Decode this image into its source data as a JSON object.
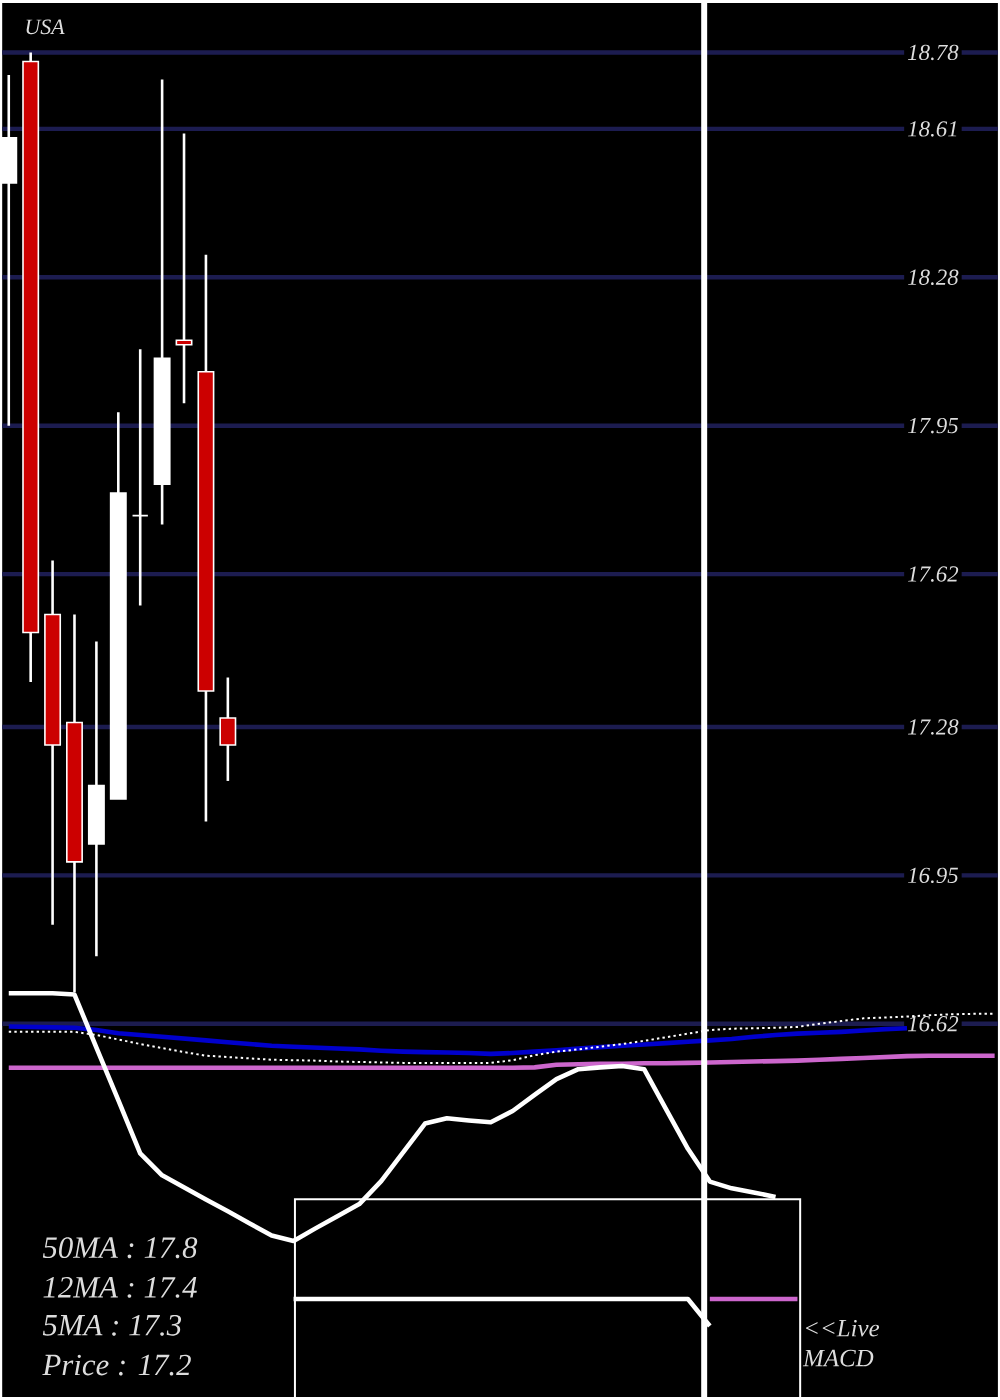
{
  "chart_data": {
    "type": "candlestick",
    "title": "USA",
    "categories": [
      null,
      null,
      null,
      null,
      null,
      null,
      null,
      null,
      null,
      null,
      null,
      null,
      null,
      null,
      null,
      null,
      null,
      null,
      null,
      null,
      null,
      null,
      null,
      null,
      null,
      null,
      null,
      null,
      null,
      null,
      null,
      null,
      null,
      null,
      null,
      null,
      null,
      null,
      null,
      null,
      null,
      null,
      null,
      null,
      null,
      null
    ],
    "ohlc": [
      [
        18.49,
        18.73,
        17.95,
        18.59
      ],
      [
        18.76,
        18.78,
        17.38,
        17.49
      ],
      [
        17.53,
        17.65,
        16.84,
        17.24
      ],
      [
        17.29,
        17.53,
        16.69,
        16.98
      ],
      [
        17.02,
        17.47,
        16.77,
        17.15
      ],
      [
        17.12,
        17.98,
        17.12,
        17.8
      ],
      [
        17.75,
        18.12,
        17.55,
        17.75
      ],
      [
        17.82,
        18.72,
        17.73,
        18.1
      ],
      [
        18.14,
        18.6,
        18.0,
        18.13
      ],
      [
        18.07,
        18.33,
        17.07,
        17.36
      ],
      [
        17.3,
        17.39,
        17.16,
        17.24
      ],
      null,
      null,
      null,
      null,
      null,
      null,
      null,
      null,
      null,
      null,
      null,
      null,
      null,
      null,
      null,
      null,
      null,
      null,
      null,
      null,
      null,
      null,
      null,
      null,
      null,
      null,
      null,
      null,
      null,
      null,
      null,
      null,
      null,
      null,
      null
    ],
    "colors": [
      "#ffffff",
      "#cc0000",
      "#cc0000",
      "#cc0000",
      "#ffffff",
      "#ffffff",
      "#ffffff",
      "#ffffff",
      "#cc0000",
      "#cc0000",
      "#cc0000",
      null,
      null,
      null,
      null,
      null,
      null,
      null,
      null,
      null,
      null,
      null,
      null,
      null,
      null,
      null,
      null,
      null,
      null,
      null,
      null,
      null,
      null,
      null,
      null,
      null,
      null,
      null,
      null,
      null,
      null,
      null,
      null,
      null,
      null,
      null
    ],
    "series": [
      {
        "type": "line",
        "color": "#0000cc",
        "values": [
          16.614,
          16.613,
          16.612,
          16.611,
          16.606,
          16.599,
          16.595,
          16.591,
          16.587,
          16.583,
          16.579,
          16.575,
          16.571,
          16.569,
          16.567,
          16.565,
          16.563,
          16.56,
          16.558,
          16.557,
          16.556,
          16.555,
          16.553,
          16.555,
          16.558,
          16.561,
          16.565,
          16.568,
          16.571,
          16.574,
          16.577,
          16.58,
          16.583,
          16.586,
          16.591,
          16.595,
          16.598,
          16.6,
          16.602,
          16.605,
          16.608,
          16.61,
          null,
          null,
          null,
          null
        ]
      },
      {
        "type": "line",
        "color": "#ffffff",
        "line_style": "dotted",
        "values": [
          16.602,
          16.602,
          16.602,
          16.602,
          16.595,
          16.585,
          16.575,
          16.566,
          16.557,
          16.549,
          16.546,
          16.543,
          16.54,
          16.539,
          16.538,
          16.536,
          16.535,
          16.534,
          16.533,
          16.533,
          16.533,
          16.533,
          16.533,
          16.539,
          16.55,
          16.558,
          16.563,
          16.569,
          16.575,
          16.582,
          16.59,
          16.598,
          16.606,
          16.609,
          16.61,
          16.611,
          16.613,
          16.62,
          16.626,
          16.632,
          16.634,
          16.636,
          16.639,
          16.641,
          16.642,
          16.642
        ]
      },
      {
        "type": "line",
        "color": "#cc66cc",
        "values": [
          16.522,
          16.522,
          16.522,
          16.522,
          16.522,
          16.522,
          16.522,
          16.522,
          16.522,
          16.522,
          16.522,
          16.522,
          16.522,
          16.522,
          16.522,
          16.522,
          16.522,
          16.522,
          16.522,
          16.522,
          16.522,
          16.522,
          16.522,
          16.522,
          16.523,
          16.529,
          16.53,
          16.531,
          16.531,
          16.532,
          16.532,
          16.533,
          16.534,
          16.535,
          16.536,
          16.537,
          16.538,
          16.54,
          16.542,
          16.544,
          16.546,
          16.548,
          16.549,
          16.549,
          16.549,
          16.549
        ]
      },
      {
        "type": "line",
        "color": "#ffffff",
        "values": [
          16.688,
          16.688,
          16.688,
          16.685,
          16.567,
          16.45,
          16.332,
          16.283,
          16.256,
          16.229,
          16.203,
          16.176,
          16.149,
          16.137,
          16.165,
          16.192,
          16.219,
          16.27,
          16.334,
          16.398,
          16.41,
          16.405,
          16.401,
          16.426,
          16.462,
          16.497,
          16.519,
          16.523,
          16.526,
          16.519,
          16.43,
          16.342,
          16.269,
          16.254,
          16.245,
          16.235,
          null,
          null,
          null,
          null,
          null,
          null,
          null,
          null,
          null,
          null
        ]
      },
      {
        "type": "line",
        "color": "#ffffff",
        "values": [
          null,
          null,
          null,
          null,
          null,
          null,
          null,
          null,
          null,
          null,
          null,
          null,
          null,
          16.008,
          16.008,
          16.008,
          16.008,
          16.008,
          16.008,
          16.008,
          16.008,
          16.008,
          16.008,
          16.008,
          16.008,
          16.008,
          16.008,
          16.008,
          16.008,
          16.008,
          16.008,
          16.008,
          15.948,
          null,
          null,
          null,
          null,
          null,
          null,
          null,
          null,
          null,
          null,
          null,
          null,
          null
        ]
      },
      {
        "type": "line",
        "color": "#cc66cc",
        "values": [
          null,
          null,
          null,
          null,
          null,
          null,
          null,
          null,
          null,
          null,
          null,
          null,
          null,
          null,
          null,
          null,
          null,
          null,
          null,
          null,
          null,
          null,
          null,
          null,
          null,
          null,
          null,
          null,
          null,
          null,
          null,
          null,
          16.008,
          16.008,
          16.008,
          16.008,
          16.008,
          null,
          null,
          null,
          null,
          null,
          null,
          null,
          null,
          null
        ]
      }
    ],
    "ylim": [
      15.79,
      18.89
    ],
    "yticks": [
      16.62,
      16.95,
      17.28,
      17.62,
      17.95,
      18.28,
      18.61,
      18.78
    ],
    "grid": "y",
    "tick_labels": "y",
    "annotations": [
      "50MA : 17.8",
      "12MA : 17.4",
      "5MA : 17.3",
      "Price : 17.2",
      "<<Live MACD"
    ]
  }
}
